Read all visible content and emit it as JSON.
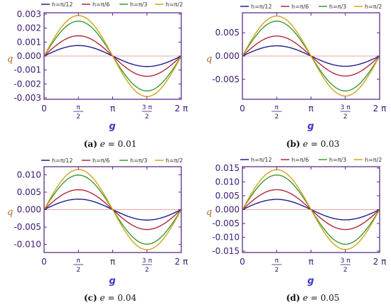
{
  "colors": {
    "frame": "#5a2d8c",
    "zero_line": "#e8a9a0",
    "tick_text": "#3a1a73",
    "q_label": "#b5651d",
    "g_label": "#3838c8"
  },
  "legend": [
    {
      "label": "h=π/12",
      "color": "#1f1f8f"
    },
    {
      "label": "h=π/6",
      "color": "#b0273a"
    },
    {
      "label": "h=π/3",
      "color": "#3a9a32"
    },
    {
      "label": "h=π/2",
      "color": "#d4a21a"
    }
  ],
  "x_ticks": [
    {
      "value": 0,
      "top": "0",
      "bottom": ""
    },
    {
      "value": 1.5708,
      "top": "π",
      "bottom": "2"
    },
    {
      "value": 3.14159,
      "top": "π",
      "bottom": ""
    },
    {
      "value": 4.71239,
      "top": "3 π",
      "bottom": "2"
    },
    {
      "value": 6.28319,
      "top": "2 π",
      "bottom": ""
    }
  ],
  "chart_data": [
    {
      "type": "line",
      "xlabel": "g",
      "ylabel": "q",
      "xlim": [
        0,
        6.28319
      ],
      "ylim": [
        -0.0031,
        0.0031
      ],
      "function": "y = A sin(x)",
      "series": [
        {
          "name": "h=π/12",
          "amplitude": 0.00075
        },
        {
          "name": "h=π/6",
          "amplitude": 0.00145
        },
        {
          "name": "h=π/3",
          "amplitude": 0.0025
        },
        {
          "name": "h=π/2",
          "amplitude": 0.0029
        }
      ],
      "y_ticks": [
        {
          "value": 0.003,
          "label": "0.003"
        },
        {
          "value": 0.002,
          "label": "0.002"
        },
        {
          "value": 0.001,
          "label": "0.001"
        },
        {
          "value": 0.0,
          "label": "0.000"
        },
        {
          "value": -0.001,
          "label": "-0.001"
        },
        {
          "value": -0.002,
          "label": "-0.002"
        },
        {
          "value": -0.003,
          "label": "-0.003"
        }
      ],
      "caption": {
        "tag": "(a)",
        "var": "e",
        "value": "= 0.01"
      }
    },
    {
      "type": "line",
      "xlabel": "g",
      "ylabel": "q",
      "xlim": [
        0,
        6.28319
      ],
      "ylim": [
        -0.0093,
        0.0093
      ],
      "function": "y = A sin(x)",
      "series": [
        {
          "name": "h=π/12",
          "amplitude": 0.0022
        },
        {
          "name": "h=π/6",
          "amplitude": 0.0043
        },
        {
          "name": "h=π/3",
          "amplitude": 0.0075
        },
        {
          "name": "h=π/2",
          "amplitude": 0.0086
        }
      ],
      "y_ticks": [
        {
          "value": 0.005,
          "label": "0.005"
        },
        {
          "value": 0.0,
          "label": "0.000"
        },
        {
          "value": -0.005,
          "label": "-0.005"
        }
      ],
      "caption": {
        "tag": "(b)",
        "var": "e",
        "value": "= 0.03"
      }
    },
    {
      "type": "line",
      "xlabel": "g",
      "ylabel": "q",
      "xlim": [
        0,
        6.28319
      ],
      "ylim": [
        -0.0123,
        0.0123
      ],
      "function": "y = A sin(x)",
      "series": [
        {
          "name": "h=π/12",
          "amplitude": 0.003
        },
        {
          "name": "h=π/6",
          "amplitude": 0.0057
        },
        {
          "name": "h=π/3",
          "amplitude": 0.0099
        },
        {
          "name": "h=π/2",
          "amplitude": 0.0115
        }
      ],
      "y_ticks": [
        {
          "value": 0.01,
          "label": "0.010"
        },
        {
          "value": 0.005,
          "label": "0.005"
        },
        {
          "value": 0.0,
          "label": "0.000"
        },
        {
          "value": -0.005,
          "label": "-0.005"
        },
        {
          "value": -0.01,
          "label": "-0.010"
        }
      ],
      "caption": {
        "tag": "(c)",
        "var": "e",
        "value": "= 0.04"
      }
    },
    {
      "type": "line",
      "xlabel": "g",
      "ylabel": "q",
      "xlim": [
        0,
        6.28319
      ],
      "ylim": [
        -0.0155,
        0.0155
      ],
      "function": "y = A sin(x)",
      "series": [
        {
          "name": "h=π/12",
          "amplitude": 0.0037
        },
        {
          "name": "h=π/6",
          "amplitude": 0.0072
        },
        {
          "name": "h=π/3",
          "amplitude": 0.0125
        },
        {
          "name": "h=π/2",
          "amplitude": 0.0144
        }
      ],
      "y_ticks": [
        {
          "value": 0.015,
          "label": "0.015"
        },
        {
          "value": 0.01,
          "label": "0.010"
        },
        {
          "value": 0.005,
          "label": "0.005"
        },
        {
          "value": 0.0,
          "label": "0.000"
        },
        {
          "value": -0.005,
          "label": "-0.005"
        },
        {
          "value": -0.01,
          "label": "-0.010"
        },
        {
          "value": -0.015,
          "label": "-0.015"
        }
      ],
      "caption": {
        "tag": "(d)",
        "var": "e",
        "value": "= 0.05"
      }
    }
  ]
}
